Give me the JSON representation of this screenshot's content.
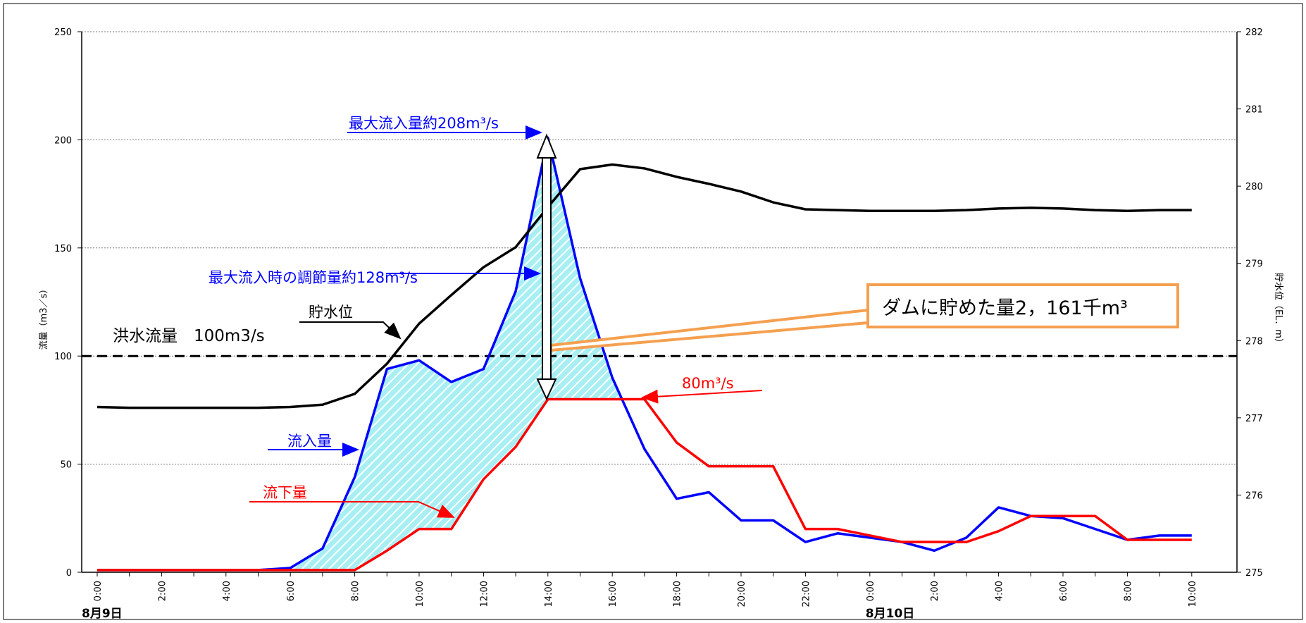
{
  "chart_data": {
    "type": "line",
    "x_labels": [
      "0:00",
      "2:00",
      "4:00",
      "6:00",
      "8:00",
      "10:00",
      "12:00",
      "14:00",
      "16:00",
      "18:00",
      "20:00",
      "22:00",
      "0:00",
      "2:00",
      "4:00",
      "6:00",
      "8:00",
      "10:00"
    ],
    "x_hours": [
      0,
      1,
      2,
      3,
      4,
      5,
      6,
      7,
      8,
      9,
      10,
      11,
      12,
      13,
      14,
      15,
      16,
      17,
      18,
      19,
      20,
      21,
      22,
      23,
      24,
      25,
      26,
      27,
      28,
      29,
      30,
      31,
      32,
      33,
      34
    ],
    "date_labels": [
      {
        "hour": 0,
        "label": "8月9日"
      },
      {
        "hour": 24,
        "label": "8月10日"
      }
    ],
    "ylabel": "流量（m3／s）",
    "y2label": "貯水位（EL．m）",
    "ylim": [
      0,
      250
    ],
    "y_ticks": [
      0,
      50,
      100,
      150,
      200,
      250
    ],
    "y2lim": [
      275,
      282
    ],
    "y2_ticks": [
      275,
      276,
      277,
      278,
      279,
      280,
      281,
      282
    ],
    "grid": "horizontal dotted",
    "series": [
      {
        "name": "流入量",
        "axis": "left",
        "color": "#0000ff",
        "values": [
          1,
          1,
          1,
          1,
          1,
          1,
          2,
          11,
          44,
          94,
          98,
          88,
          94,
          130,
          201,
          136,
          90,
          57,
          34,
          37,
          24,
          24,
          14,
          18,
          16,
          14,
          10,
          16,
          30,
          26,
          25,
          20,
          15,
          17,
          17
        ]
      },
      {
        "name": "流下量",
        "axis": "left",
        "color": "#ff0000",
        "values": [
          1,
          1,
          1,
          1,
          1,
          1,
          1,
          1,
          1,
          10,
          20,
          20,
          43,
          58,
          80,
          80,
          80,
          80,
          60,
          49,
          49,
          49,
          20,
          20,
          17,
          14,
          14,
          14,
          19,
          26,
          26,
          26,
          15,
          15,
          15
        ]
      },
      {
        "name": "貯水位",
        "axis": "right",
        "color": "#000000",
        "values": [
          277.14,
          277.13,
          277.13,
          277.13,
          277.13,
          277.13,
          277.14,
          277.17,
          277.31,
          277.7,
          278.22,
          278.59,
          278.95,
          279.21,
          279.73,
          280.22,
          280.28,
          280.23,
          280.12,
          280.03,
          279.93,
          279.79,
          279.7,
          279.69,
          279.68,
          279.68,
          279.68,
          279.69,
          279.71,
          279.72,
          279.71,
          279.69,
          279.68,
          279.69,
          279.69
        ]
      }
    ],
    "threshold": {
      "value": 100,
      "label": "洪水流量　100m3/s",
      "style": "dashed"
    },
    "annotations": {
      "peak_inflow": "最大流入量約208m³/s",
      "peak_regulation": "最大流入時の調節量約128m³/s",
      "storage_volume": "ダムに貯めた量2，161千m³",
      "release_80": "80m³/s",
      "inflow": "流入量",
      "outflow": "流下量",
      "water_level": "貯水位"
    },
    "colors": {
      "inflow": "#0000ff",
      "outflow": "#ff0000",
      "level": "#000000",
      "fill": "#7fe6ee",
      "callout": "#f4a050"
    }
  }
}
